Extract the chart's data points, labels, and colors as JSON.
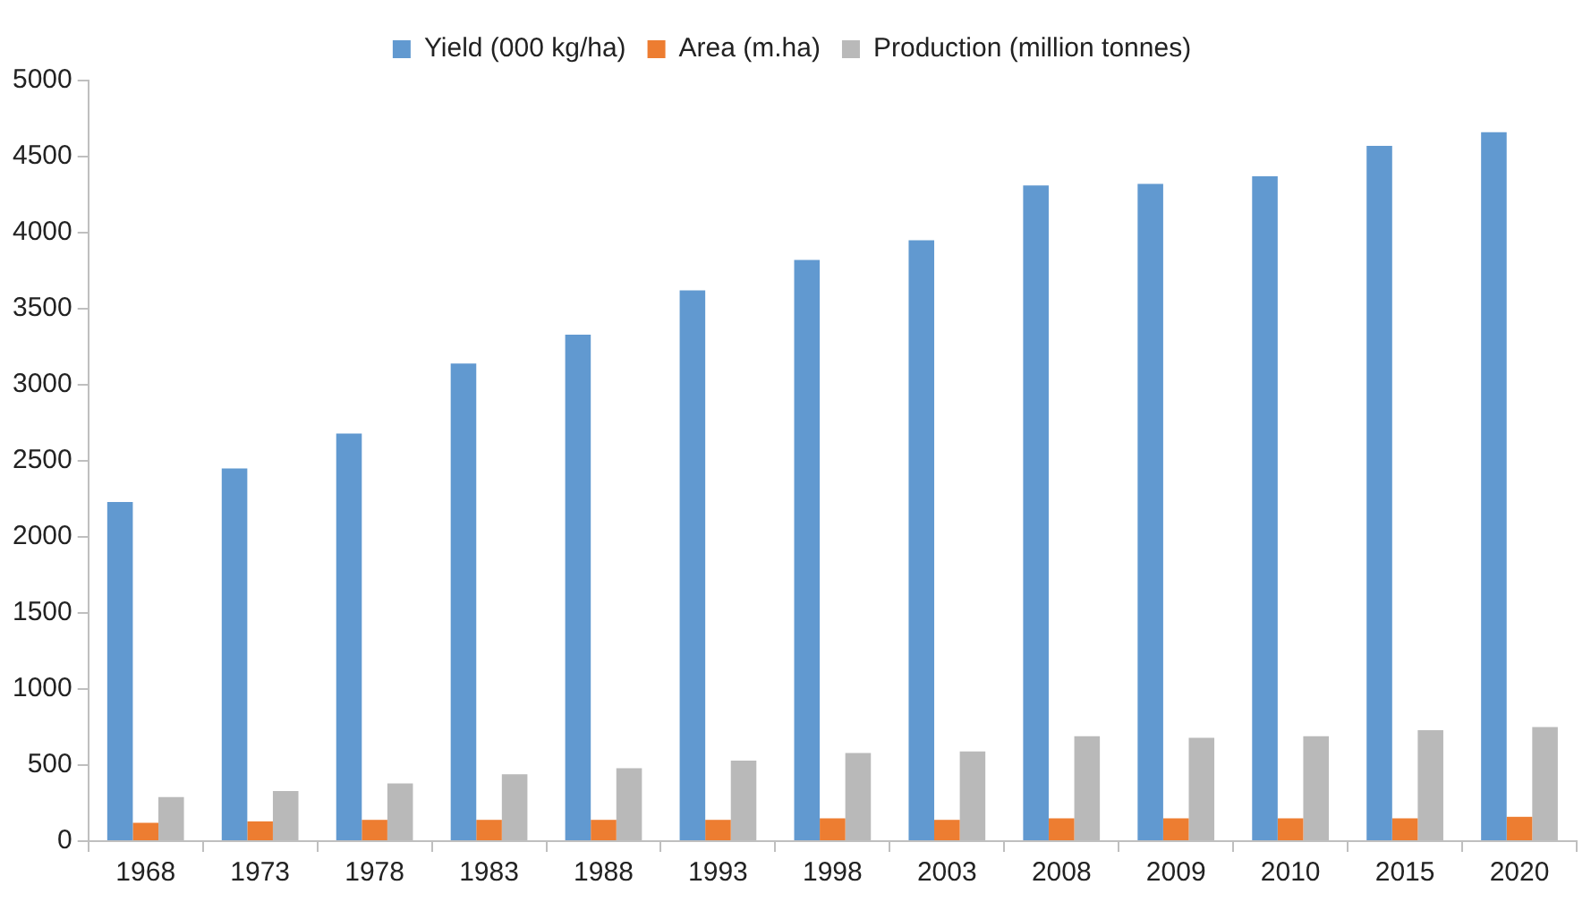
{
  "chart_data": {
    "type": "bar",
    "categories": [
      "1968",
      "1973",
      "1978",
      "1983",
      "1988",
      "1993",
      "1998",
      "2003",
      "2008",
      "2009",
      "2010",
      "2015",
      "2020"
    ],
    "series": [
      {
        "name": "Yield (000 kg/ha)",
        "color": "#6199d0",
        "values": [
          2230,
          2450,
          2680,
          3140,
          3330,
          3620,
          3820,
          3950,
          4310,
          4320,
          4370,
          4570,
          4660
        ]
      },
      {
        "name": "Area (m.ha)",
        "color": "#ed7d31",
        "values": [
          120,
          130,
          140,
          140,
          140,
          140,
          150,
          140,
          150,
          150,
          150,
          150,
          160
        ]
      },
      {
        "name": "Production (million tonnes)",
        "color": "#b9b9b9",
        "values": [
          290,
          330,
          380,
          440,
          480,
          530,
          580,
          590,
          690,
          680,
          690,
          730,
          750
        ]
      }
    ],
    "ylim": [
      0,
      5000
    ],
    "yticks": [
      0,
      500,
      1000,
      1500,
      2000,
      2500,
      3000,
      3500,
      4000,
      4500,
      5000
    ],
    "grid": false,
    "legend": "top"
  }
}
